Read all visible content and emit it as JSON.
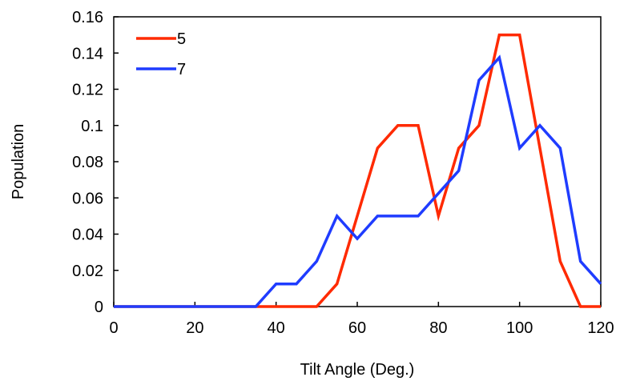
{
  "chart_data": {
    "type": "line",
    "xlabel": "Tilt Angle (Deg.)",
    "ylabel": "Population",
    "xlim": [
      0,
      120
    ],
    "ylim": [
      0,
      0.16
    ],
    "x_ticks": [
      "0",
      "20",
      "40",
      "60",
      "80",
      "100",
      "120"
    ],
    "y_ticks": [
      "0",
      "0.02",
      "0.04",
      "0.06",
      "0.08",
      "0.1",
      "0.12",
      "0.14",
      "0.16"
    ],
    "grid": false,
    "legend_position": "top-left",
    "series": [
      {
        "name": "5",
        "color": "#ff2a00",
        "points": [
          [
            0,
            0
          ],
          [
            5,
            0
          ],
          [
            10,
            0
          ],
          [
            15,
            0
          ],
          [
            20,
            0
          ],
          [
            25,
            0
          ],
          [
            30,
            0
          ],
          [
            35,
            0
          ],
          [
            40,
            0
          ],
          [
            45,
            0
          ],
          [
            50,
            0
          ],
          [
            55,
            0.0125
          ],
          [
            60,
            0.05
          ],
          [
            65,
            0.0875
          ],
          [
            70,
            0.1
          ],
          [
            75,
            0.1
          ],
          [
            80,
            0.05
          ],
          [
            85,
            0.0875
          ],
          [
            90,
            0.1
          ],
          [
            95,
            0.15
          ],
          [
            100,
            0.15
          ],
          [
            105,
            0.0875
          ],
          [
            110,
            0.025
          ],
          [
            115,
            0
          ],
          [
            120,
            0
          ]
        ]
      },
      {
        "name": "7",
        "color": "#1f3cff",
        "points": [
          [
            0,
            0
          ],
          [
            5,
            0
          ],
          [
            10,
            0
          ],
          [
            15,
            0
          ],
          [
            20,
            0
          ],
          [
            25,
            0
          ],
          [
            30,
            0
          ],
          [
            35,
            0
          ],
          [
            40,
            0.0125
          ],
          [
            45,
            0.0125
          ],
          [
            50,
            0.025
          ],
          [
            55,
            0.05
          ],
          [
            60,
            0.0375
          ],
          [
            65,
            0.05
          ],
          [
            70,
            0.05
          ],
          [
            75,
            0.05
          ],
          [
            80,
            0.0625
          ],
          [
            85,
            0.075
          ],
          [
            90,
            0.125
          ],
          [
            95,
            0.1375
          ],
          [
            100,
            0.0875
          ],
          [
            105,
            0.1
          ],
          [
            110,
            0.0875
          ],
          [
            115,
            0.025
          ],
          [
            120,
            0.0125
          ]
        ]
      }
    ]
  }
}
